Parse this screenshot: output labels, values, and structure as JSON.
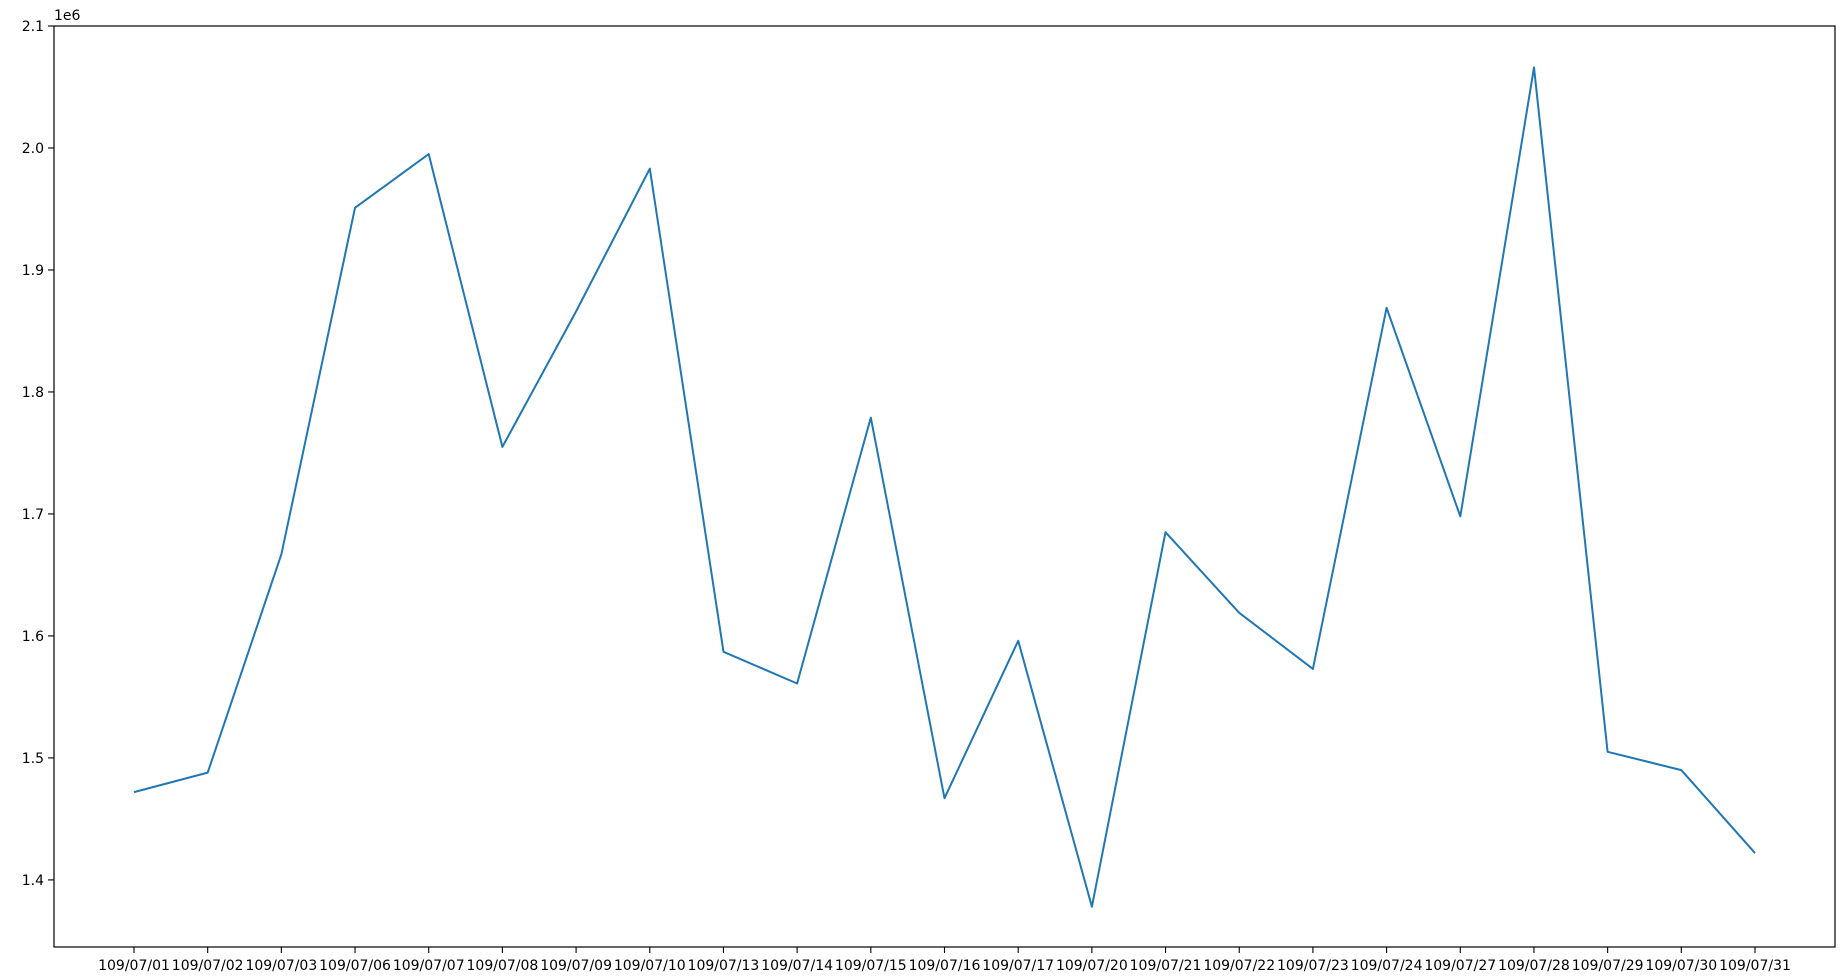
{
  "chart_data": {
    "type": "line",
    "title": "",
    "xlabel": "",
    "ylabel": "",
    "y_offset_text": "1e6",
    "ylim": [
      1.345,
      2.1
    ],
    "y_ticks": [
      1.4,
      1.5,
      1.6,
      1.7,
      1.8,
      1.9,
      2.0,
      2.1
    ],
    "y_tick_labels": [
      "1.4",
      "1.5",
      "1.6",
      "1.7",
      "1.8",
      "1.9",
      "2.0",
      "2.1"
    ],
    "grid": false,
    "legend": "none",
    "line_color": "#1f77b4",
    "categories": [
      "109/07/01",
      "109/07/02",
      "109/07/03",
      "109/07/06",
      "109/07/07",
      "109/07/08",
      "109/07/09",
      "109/07/10",
      "109/07/13",
      "109/07/14",
      "109/07/15",
      "109/07/16",
      "109/07/17",
      "109/07/20",
      "109/07/21",
      "109/07/22",
      "109/07/23",
      "109/07/24",
      "109/07/27",
      "109/07/28",
      "109/07/29",
      "109/07/30",
      "109/07/31"
    ],
    "series": [
      {
        "values": [
          1.472,
          1.488,
          1.667,
          1.951,
          1.995,
          1.755,
          1.866,
          1.983,
          1.587,
          1.561,
          1.779,
          1.467,
          1.596,
          1.378,
          1.685,
          1.619,
          1.573,
          1.869,
          1.698,
          2.066,
          1.505,
          1.49,
          1.422
        ]
      }
    ]
  }
}
